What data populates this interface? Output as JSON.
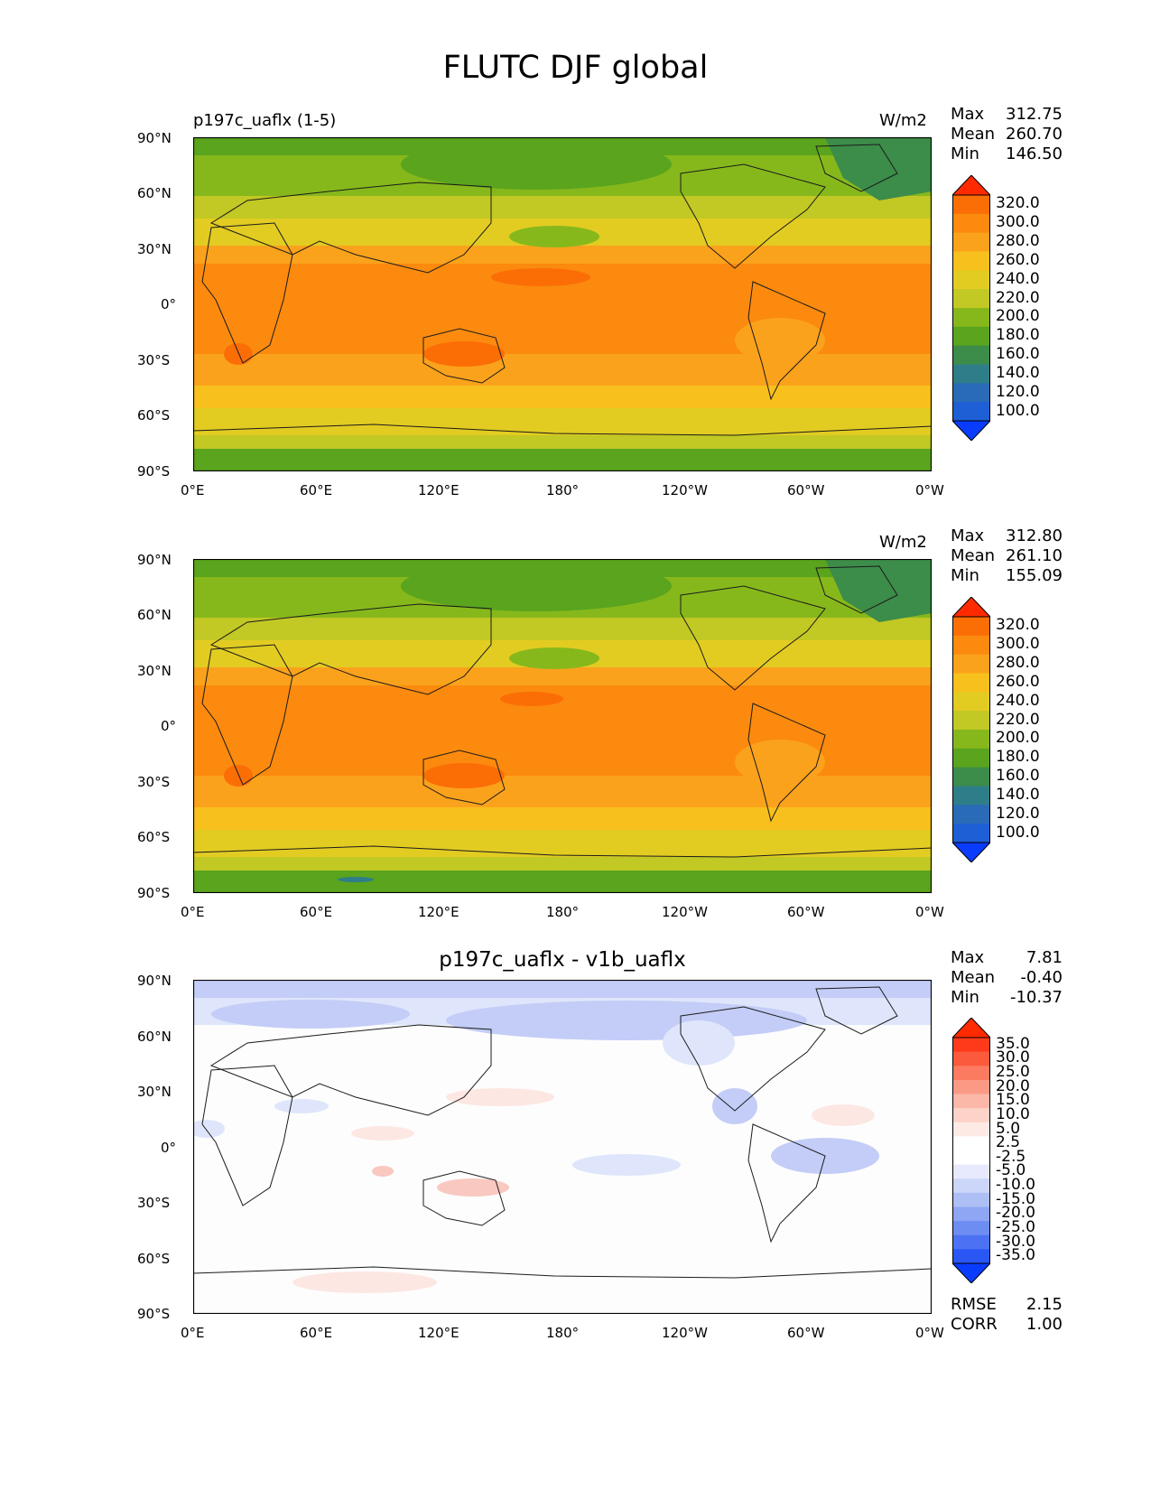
{
  "figure": {
    "title": "FLUTC DJF global"
  },
  "colors": {
    "abs_levels": [
      {
        "value": 100,
        "color": "#1f5fd6"
      },
      {
        "value": 120,
        "color": "#2a6bb8"
      },
      {
        "value": 140,
        "color": "#2e7e8a"
      },
      {
        "value": 160,
        "color": "#3c8c4a"
      },
      {
        "value": 180,
        "color": "#5aa41e"
      },
      {
        "value": 200,
        "color": "#86b81c"
      },
      {
        "value": 220,
        "color": "#c2c824"
      },
      {
        "value": 240,
        "color": "#e2cc22"
      },
      {
        "value": 260,
        "color": "#f8c01c"
      },
      {
        "value": 280,
        "color": "#fba21c"
      },
      {
        "value": 300,
        "color": "#fb8a0e"
      },
      {
        "value": 320,
        "color": "#fb6e06"
      }
    ],
    "abs_low": "#0a3cff",
    "abs_high": "#ff2a00",
    "diff_low": "#0a3cff",
    "diff_high": "#ff2a00",
    "diff_map": {
      "background": "#fdfdfd",
      "cool_light": "#dfe6fb",
      "cool_mid": "#c3cdf7",
      "cool_strong": "#b0bdf3",
      "warm_light": "#fde7e3",
      "warm_mid": "#f9c8c0"
    },
    "coast": "#1b1b1b"
  },
  "panels": [
    {
      "title": "p197c_uaflx (1-5)",
      "units": "W/m2",
      "stats": [
        {
          "label": "Max",
          "value": "312.75"
        },
        {
          "label": "Mean",
          "value": "260.70"
        },
        {
          "label": "Min",
          "value": "146.50"
        }
      ],
      "colorbar_labels": [
        "320.0",
        "300.0",
        "280.0",
        "260.0",
        "240.0",
        "220.0",
        "200.0",
        "180.0",
        "160.0",
        "140.0",
        "120.0",
        "100.0"
      ]
    },
    {
      "title": "",
      "units": "W/m2",
      "stats": [
        {
          "label": "Max",
          "value": "312.80"
        },
        {
          "label": "Mean",
          "value": "261.10"
        },
        {
          "label": "Min",
          "value": "155.09"
        }
      ],
      "colorbar_labels": [
        "320.0",
        "300.0",
        "280.0",
        "260.0",
        "240.0",
        "220.0",
        "200.0",
        "180.0",
        "160.0",
        "140.0",
        "120.0",
        "100.0"
      ]
    },
    {
      "title": "p197c_uaflx - v1b_uaflx",
      "units": "",
      "stats": [
        {
          "label": "Max",
          "value": "7.81"
        },
        {
          "label": "Mean",
          "value": "-0.40"
        },
        {
          "label": "Min",
          "value": "-10.37"
        }
      ],
      "colorbar_labels": [
        "35.0",
        "30.0",
        "25.0",
        "20.0",
        "15.0",
        "10.0",
        "5.0",
        "2.5",
        "-2.5",
        "-5.0",
        "-10.0",
        "-15.0",
        "-20.0",
        "-25.0",
        "-30.0",
        "-35.0"
      ],
      "colorbar_colors": [
        "#ff3a1a",
        "#fb5a3c",
        "#fb7a60",
        "#fb9a84",
        "#fbb8a8",
        "#fdd2c8",
        "#feeae4",
        "#ffffff",
        "#ffffff",
        "#e6eafc",
        "#ccd6f8",
        "#aebff5",
        "#8ea6f3",
        "#6e8df2",
        "#4c72f3",
        "#2a56f4"
      ],
      "extra_stats": [
        {
          "label": "RMSE",
          "value": "2.15"
        },
        {
          "label": "CORR",
          "value": "1.00"
        }
      ]
    }
  ],
  "axes": {
    "xticks": [
      "0°E",
      "60°E",
      "120°E",
      "180°",
      "120°W",
      "60°W",
      "0°W"
    ],
    "yticks": [
      "90°N",
      "60°N",
      "30°N",
      "0°",
      "30°S",
      "60°S",
      "90°S"
    ]
  },
  "chart_data": [
    {
      "type": "heatmap",
      "title": "p197c_uaflx (1-5)",
      "units": "W/m2",
      "xlim": [
        0,
        360
      ],
      "ylim": [
        -90,
        90
      ],
      "levels": [
        100,
        120,
        140,
        160,
        180,
        200,
        220,
        240,
        260,
        280,
        300,
        320
      ],
      "stats": {
        "max": 312.75,
        "mean": 260.7,
        "min": 146.5
      },
      "zonal_profile": [
        {
          "lat": 85,
          "value": 180
        },
        {
          "lat": 70,
          "value": 200
        },
        {
          "lat": 55,
          "value": 220
        },
        {
          "lat": 45,
          "value": 240
        },
        {
          "lat": 35,
          "value": 260
        },
        {
          "lat": 25,
          "value": 280
        },
        {
          "lat": 10,
          "value": 290
        },
        {
          "lat": 0,
          "value": 285
        },
        {
          "lat": -10,
          "value": 290
        },
        {
          "lat": -25,
          "value": 285
        },
        {
          "lat": -40,
          "value": 260
        },
        {
          "lat": -50,
          "value": 240
        },
        {
          "lat": -60,
          "value": 230
        },
        {
          "lat": -75,
          "value": 200
        },
        {
          "lat": -88,
          "value": 180
        }
      ]
    },
    {
      "type": "heatmap",
      "title": "",
      "units": "W/m2",
      "xlim": [
        0,
        360
      ],
      "ylim": [
        -90,
        90
      ],
      "levels": [
        100,
        120,
        140,
        160,
        180,
        200,
        220,
        240,
        260,
        280,
        300,
        320
      ],
      "stats": {
        "max": 312.8,
        "mean": 261.1,
        "min": 155.09
      },
      "zonal_profile": [
        {
          "lat": 85,
          "value": 180
        },
        {
          "lat": 70,
          "value": 200
        },
        {
          "lat": 55,
          "value": 220
        },
        {
          "lat": 45,
          "value": 240
        },
        {
          "lat": 35,
          "value": 260
        },
        {
          "lat": 25,
          "value": 280
        },
        {
          "lat": 10,
          "value": 290
        },
        {
          "lat": 0,
          "value": 285
        },
        {
          "lat": -10,
          "value": 290
        },
        {
          "lat": -25,
          "value": 285
        },
        {
          "lat": -40,
          "value": 260
        },
        {
          "lat": -50,
          "value": 240
        },
        {
          "lat": -60,
          "value": 230
        },
        {
          "lat": -75,
          "value": 200
        },
        {
          "lat": -88,
          "value": 180
        }
      ]
    },
    {
      "type": "heatmap",
      "title": "p197c_uaflx - v1b_uaflx",
      "xlim": [
        0,
        360
      ],
      "ylim": [
        -90,
        90
      ],
      "levels": [
        -35,
        -30,
        -25,
        -20,
        -15,
        -10,
        -5,
        -2.5,
        2.5,
        5,
        10,
        15,
        20,
        25,
        30,
        35
      ],
      "stats": {
        "max": 7.81,
        "mean": -0.4,
        "min": -10.37,
        "rmse": 2.15,
        "corr": 1.0
      }
    }
  ]
}
